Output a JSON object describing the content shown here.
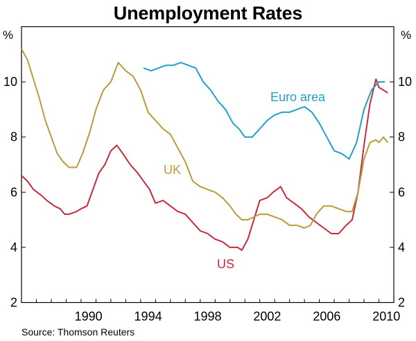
{
  "chart_data": {
    "type": "line",
    "title": "Unemployment Rates",
    "source": "Source: Thomson Reuters",
    "y_unit_left": "%",
    "y_unit_right": "%",
    "ylim": [
      2,
      12
    ],
    "yticks": [
      "2",
      "4",
      "6",
      "8",
      "10"
    ],
    "xlim": [
      1986.0,
      2011.0
    ],
    "xticks": [
      "1990",
      "1994",
      "1998",
      "2002",
      "2006",
      "2010"
    ],
    "grid": false,
    "series": [
      {
        "name": "US",
        "color": "#c8283c",
        "points": [
          [
            1986.0,
            6.6
          ],
          [
            1986.4,
            6.4
          ],
          [
            1986.8,
            6.1
          ],
          [
            1987.3,
            5.9
          ],
          [
            1987.7,
            5.7
          ],
          [
            1988.2,
            5.5
          ],
          [
            1988.6,
            5.4
          ],
          [
            1988.9,
            5.2
          ],
          [
            1989.2,
            5.2
          ],
          [
            1989.7,
            5.3
          ],
          [
            1990.0,
            5.4
          ],
          [
            1990.4,
            5.5
          ],
          [
            1990.8,
            6.1
          ],
          [
            1991.2,
            6.7
          ],
          [
            1991.6,
            7.0
          ],
          [
            1992.0,
            7.5
          ],
          [
            1992.4,
            7.7
          ],
          [
            1992.8,
            7.4
          ],
          [
            1993.3,
            7.0
          ],
          [
            1993.8,
            6.7
          ],
          [
            1994.2,
            6.4
          ],
          [
            1994.6,
            6.1
          ],
          [
            1995.0,
            5.6
          ],
          [
            1995.5,
            5.7
          ],
          [
            1996.0,
            5.5
          ],
          [
            1996.5,
            5.3
          ],
          [
            1997.0,
            5.2
          ],
          [
            1997.5,
            4.9
          ],
          [
            1998.0,
            4.6
          ],
          [
            1998.5,
            4.5
          ],
          [
            1999.0,
            4.3
          ],
          [
            1999.5,
            4.2
          ],
          [
            2000.0,
            4.0
          ],
          [
            2000.5,
            4.0
          ],
          [
            2000.8,
            3.9
          ],
          [
            2001.2,
            4.3
          ],
          [
            2001.6,
            5.0
          ],
          [
            2002.0,
            5.7
          ],
          [
            2002.5,
            5.8
          ],
          [
            2002.9,
            6.0
          ],
          [
            2003.4,
            6.2
          ],
          [
            2003.8,
            5.8
          ],
          [
            2004.3,
            5.6
          ],
          [
            2004.8,
            5.4
          ],
          [
            2005.3,
            5.1
          ],
          [
            2005.8,
            4.9
          ],
          [
            2006.3,
            4.7
          ],
          [
            2006.8,
            4.5
          ],
          [
            2007.3,
            4.5
          ],
          [
            2007.8,
            4.8
          ],
          [
            2008.2,
            5.0
          ],
          [
            2008.6,
            6.0
          ],
          [
            2009.0,
            7.7
          ],
          [
            2009.4,
            9.2
          ],
          [
            2009.8,
            10.1
          ],
          [
            2010.0,
            9.8
          ],
          [
            2010.3,
            9.7
          ],
          [
            2010.6,
            9.6
          ]
        ]
      },
      {
        "name": "UK",
        "color": "#b89c3a",
        "points": [
          [
            1986.0,
            11.2
          ],
          [
            1986.4,
            10.8
          ],
          [
            1986.8,
            10.1
          ],
          [
            1987.2,
            9.4
          ],
          [
            1987.6,
            8.6
          ],
          [
            1988.0,
            8.0
          ],
          [
            1988.4,
            7.4
          ],
          [
            1988.8,
            7.1
          ],
          [
            1989.2,
            6.9
          ],
          [
            1989.7,
            6.9
          ],
          [
            1990.1,
            7.4
          ],
          [
            1990.6,
            8.2
          ],
          [
            1991.0,
            9.0
          ],
          [
            1991.5,
            9.7
          ],
          [
            1992.0,
            10.0
          ],
          [
            1992.5,
            10.7
          ],
          [
            1993.0,
            10.4
          ],
          [
            1993.5,
            10.2
          ],
          [
            1994.0,
            9.7
          ],
          [
            1994.5,
            8.9
          ],
          [
            1995.0,
            8.6
          ],
          [
            1995.5,
            8.3
          ],
          [
            1996.0,
            8.1
          ],
          [
            1996.5,
            7.6
          ],
          [
            1997.0,
            7.1
          ],
          [
            1997.5,
            6.4
          ],
          [
            1998.0,
            6.2
          ],
          [
            1998.5,
            6.1
          ],
          [
            1999.0,
            6.0
          ],
          [
            1999.5,
            5.8
          ],
          [
            2000.0,
            5.5
          ],
          [
            2000.4,
            5.2
          ],
          [
            2000.8,
            5.0
          ],
          [
            2001.2,
            5.0
          ],
          [
            2001.6,
            5.1
          ],
          [
            2002.0,
            5.2
          ],
          [
            2002.5,
            5.2
          ],
          [
            2003.0,
            5.1
          ],
          [
            2003.5,
            5.0
          ],
          [
            2004.0,
            4.8
          ],
          [
            2004.5,
            4.8
          ],
          [
            2005.0,
            4.7
          ],
          [
            2005.4,
            4.8
          ],
          [
            2005.8,
            5.2
          ],
          [
            2006.3,
            5.5
          ],
          [
            2006.8,
            5.5
          ],
          [
            2007.3,
            5.4
          ],
          [
            2007.8,
            5.3
          ],
          [
            2008.2,
            5.3
          ],
          [
            2008.6,
            6.0
          ],
          [
            2009.0,
            7.2
          ],
          [
            2009.4,
            7.8
          ],
          [
            2009.8,
            7.9
          ],
          [
            2010.0,
            7.8
          ],
          [
            2010.3,
            8.0
          ],
          [
            2010.6,
            7.8
          ]
        ]
      },
      {
        "name": "Euro area",
        "color": "#1ea0c8",
        "points": [
          [
            1994.2,
            10.5
          ],
          [
            1994.7,
            10.4
          ],
          [
            1995.2,
            10.5
          ],
          [
            1995.7,
            10.6
          ],
          [
            1996.2,
            10.6
          ],
          [
            1996.7,
            10.7
          ],
          [
            1997.2,
            10.6
          ],
          [
            1997.7,
            10.5
          ],
          [
            1998.2,
            10.0
          ],
          [
            1998.7,
            9.7
          ],
          [
            1999.2,
            9.3
          ],
          [
            1999.7,
            9.0
          ],
          [
            2000.2,
            8.5
          ],
          [
            2000.6,
            8.3
          ],
          [
            2001.0,
            8.0
          ],
          [
            2001.5,
            8.0
          ],
          [
            2002.0,
            8.3
          ],
          [
            2002.5,
            8.6
          ],
          [
            2003.0,
            8.8
          ],
          [
            2003.5,
            8.9
          ],
          [
            2004.0,
            8.9
          ],
          [
            2004.5,
            9.0
          ],
          [
            2005.0,
            9.1
          ],
          [
            2005.5,
            8.9
          ],
          [
            2006.0,
            8.5
          ],
          [
            2006.5,
            8.0
          ],
          [
            2007.0,
            7.5
          ],
          [
            2007.5,
            7.4
          ],
          [
            2008.0,
            7.2
          ],
          [
            2008.5,
            7.8
          ],
          [
            2009.0,
            9.0
          ],
          [
            2009.5,
            9.7
          ],
          [
            2010.0,
            10.0
          ],
          [
            2010.4,
            10.0
          ]
        ]
      }
    ]
  }
}
